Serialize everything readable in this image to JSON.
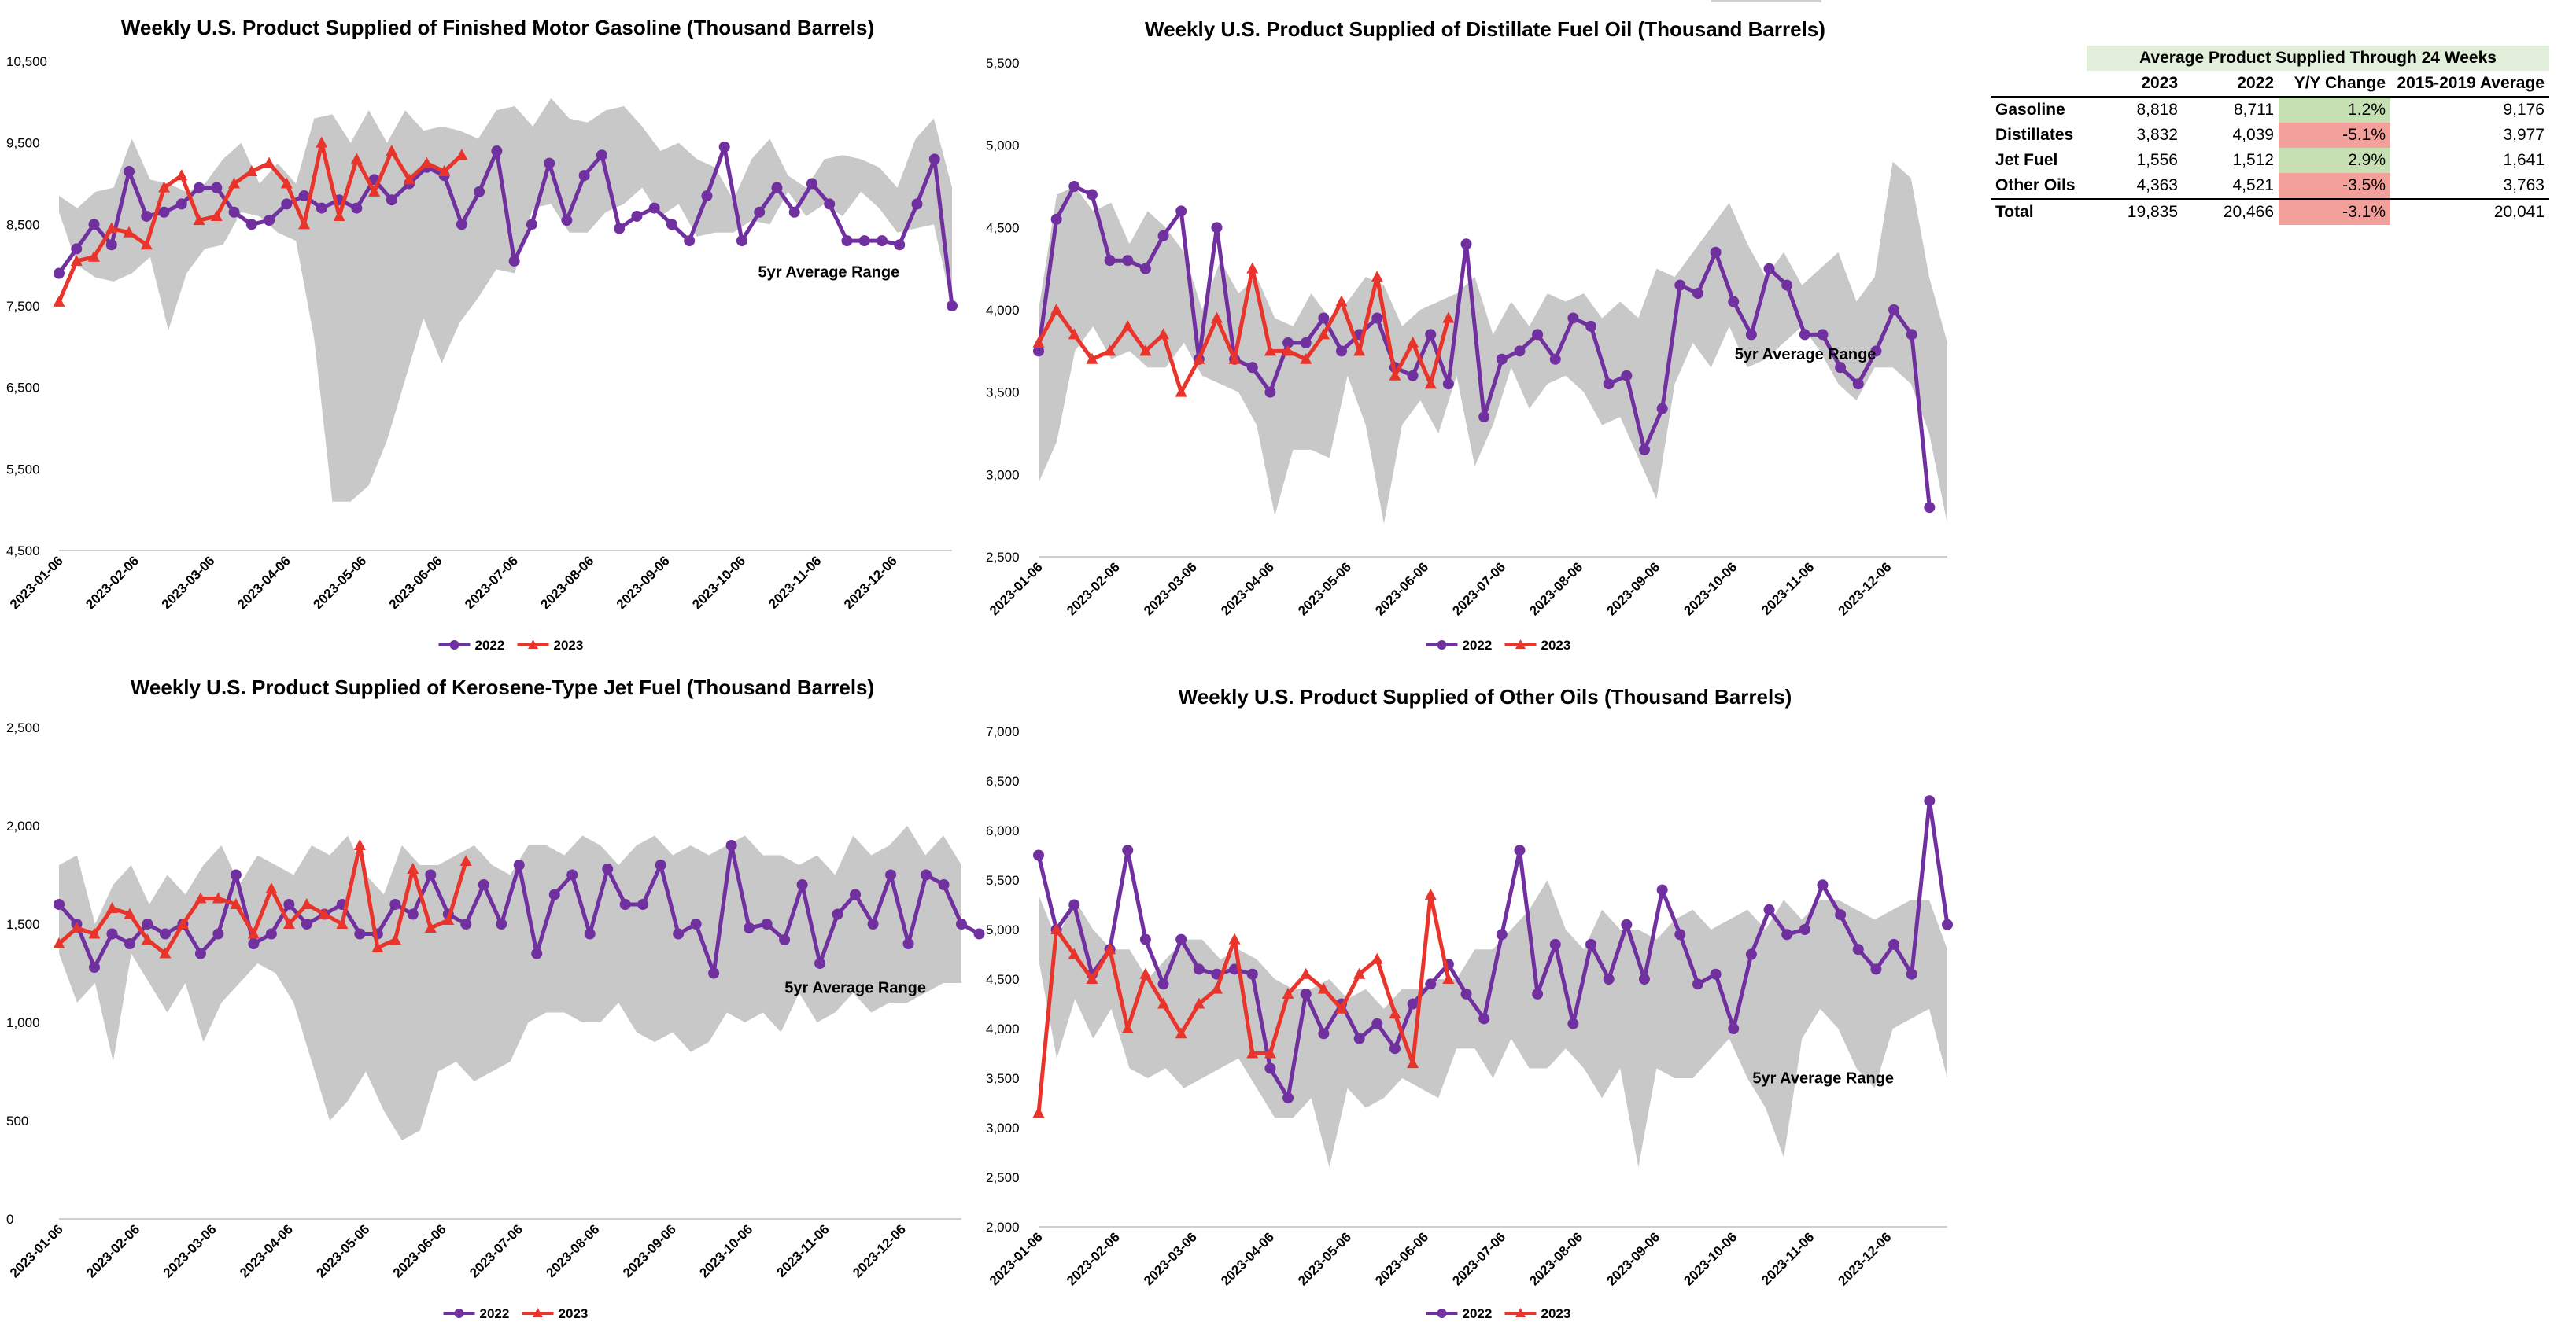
{
  "colors": {
    "series_2022": "#7030a0",
    "series_2023": "#e8342a",
    "range_band": "#c8c8c8",
    "pos_fill": "#c6e0b4",
    "neg_fill": "#f4a09a",
    "caption_fill": "#e2efda"
  },
  "x_ticks": [
    "2023-01-06",
    "2023-02-06",
    "2023-03-06",
    "2023-04-06",
    "2023-05-06",
    "2023-06-06",
    "2023-07-06",
    "2023-08-06",
    "2023-09-06",
    "2023-10-06",
    "2023-11-06",
    "2023-12-06"
  ],
  "chart_data": [
    {
      "id": "gasoline",
      "type": "line",
      "title": "Weekly U.S. Product Supplied of Finished Motor Gasoline (Thousand Barrels)",
      "ylim": [
        4500,
        10500
      ],
      "yticks": [
        4500,
        5500,
        6500,
        7500,
        8500,
        9500,
        10500
      ],
      "range_label": "5yr Average Range",
      "legend": [
        "2022",
        "2023"
      ],
      "band_upper": [
        8850,
        8700,
        8900,
        8950,
        9550,
        9050,
        9000,
        8900,
        9000,
        9300,
        9500,
        9000,
        9250,
        9000,
        9800,
        9850,
        9500,
        9900,
        9500,
        9900,
        9650,
        9700,
        9650,
        9550,
        9900,
        9950,
        9700,
        10050,
        9800,
        9750,
        9900,
        9950,
        9700,
        9400,
        9500,
        9300,
        9200,
        8800,
        9300,
        9550,
        9100,
        8950,
        9300,
        9350,
        9300,
        9200,
        8950,
        9550,
        9800,
        8950
      ],
      "band_lower": [
        8650,
        8000,
        7850,
        7800,
        7900,
        8100,
        7200,
        7900,
        8200,
        8250,
        8650,
        8600,
        8400,
        8300,
        7100,
        5100,
        5100,
        5300,
        5850,
        6600,
        7350,
        6800,
        7300,
        7600,
        7950,
        7900,
        8700,
        8750,
        8400,
        8400,
        8650,
        8750,
        8950,
        8600,
        8750,
        8350,
        8400,
        8400,
        8550,
        8500,
        8900,
        8600,
        8750,
        8600,
        8900,
        8700,
        8400,
        8450,
        8500,
        7500
      ],
      "series_2022": [
        7900,
        8200,
        8500,
        8250,
        9150,
        8600,
        8650,
        8750,
        8950,
        8950,
        8650,
        8500,
        8550,
        8750,
        8850,
        8700,
        8800,
        8700,
        9050,
        8800,
        9000,
        9200,
        9100,
        8500,
        8900,
        9400,
        8050,
        8500,
        9250,
        8550,
        9100,
        9350,
        8450,
        8600,
        8700,
        8500,
        8300,
        8850,
        9450,
        8300,
        8650,
        8950,
        8650,
        9000,
        8750,
        8300,
        8300,
        8300,
        8250,
        8750,
        9300,
        7500
      ],
      "series_2023": [
        7550,
        8050,
        8100,
        8450,
        8400,
        8250,
        8950,
        9100,
        8550,
        8600,
        9000,
        9150,
        9250,
        9000,
        8500,
        9500,
        8600,
        9300,
        8900,
        9400,
        9050,
        9250,
        9150,
        9350
      ]
    },
    {
      "id": "distillate",
      "type": "line",
      "title": "Weekly U.S. Product Supplied of Distillate Fuel Oil (Thousand Barrels)",
      "ylim": [
        2500,
        5500
      ],
      "yticks": [
        2500,
        3000,
        3500,
        4000,
        4500,
        5000,
        5500
      ],
      "range_label": "5yr Average Range",
      "legend": [
        "2022",
        "2023"
      ],
      "band_upper": [
        4000,
        4700,
        4750,
        4600,
        4650,
        4400,
        4600,
        4500,
        4350,
        4000,
        4300,
        4100,
        4200,
        3950,
        3900,
        4100,
        3950,
        4050,
        4200,
        4150,
        3900,
        4000,
        4050,
        4100,
        4200,
        3850,
        4050,
        3900,
        4100,
        4050,
        4100,
        3950,
        4050,
        3950,
        4250,
        4200,
        4350,
        4500,
        4650,
        4400,
        4200,
        4350,
        4150,
        4250,
        4350,
        4050,
        4200,
        4900,
        4800,
        4200,
        3800
      ],
      "band_lower": [
        2950,
        3200,
        3750,
        3900,
        3700,
        3750,
        3650,
        3650,
        3800,
        3600,
        3550,
        3500,
        3300,
        2750,
        3150,
        3150,
        3100,
        3600,
        3300,
        2700,
        3300,
        3450,
        3250,
        3600,
        3050,
        3300,
        3650,
        3400,
        3550,
        3600,
        3500,
        3300,
        3350,
        3100,
        2850,
        3550,
        3800,
        3650,
        3900,
        3650,
        3700,
        3800,
        3900,
        3750,
        3550,
        3450,
        3650,
        3650,
        3550,
        3250,
        2700
      ],
      "series_2022": [
        3750,
        4550,
        4750,
        4700,
        4300,
        4300,
        4250,
        4450,
        4600,
        3700,
        4500,
        3700,
        3650,
        3500,
        3800,
        3800,
        3950,
        3750,
        3850,
        3950,
        3650,
        3600,
        3850,
        3550,
        4400,
        3350,
        3700,
        3750,
        3850,
        3700,
        3950,
        3900,
        3550,
        3600,
        3150,
        3400,
        4150,
        4100,
        4350,
        4050,
        3850,
        4250,
        4150,
        3850,
        3850,
        3650,
        3550,
        3750,
        4000,
        3850,
        2800
      ],
      "series_2023": [
        3800,
        4000,
        3850,
        3700,
        3750,
        3900,
        3750,
        3850,
        3500,
        3700,
        3950,
        3700,
        4250,
        3750,
        3750,
        3700,
        3850,
        4050,
        3750,
        4200,
        3600,
        3800,
        3550,
        3950
      ]
    },
    {
      "id": "jetfuel",
      "type": "line",
      "title": "Weekly U.S. Product Supplied of Kerosene-Type Jet Fuel (Thousand Barrels)",
      "ylim": [
        0,
        2500
      ],
      "yticks": [
        0,
        500,
        1000,
        1500,
        2000,
        2500
      ],
      "range_label": "5yr Average Range",
      "legend": [
        "2022",
        "2023"
      ],
      "band_upper": [
        1800,
        1850,
        1500,
        1700,
        1800,
        1600,
        1750,
        1650,
        1800,
        1900,
        1700,
        1850,
        1800,
        1750,
        1900,
        1850,
        1950,
        1750,
        1650,
        1900,
        1800,
        1800,
        1850,
        1900,
        1800,
        1750,
        1900,
        1900,
        1850,
        1950,
        1900,
        1800,
        1900,
        1950,
        1850,
        1900,
        1850,
        1900,
        1950,
        1850,
        1850,
        1800,
        1850,
        1750,
        1950,
        1850,
        1900,
        2000,
        1850,
        1950,
        1800
      ],
      "band_lower": [
        1350,
        1100,
        1200,
        800,
        1350,
        1200,
        1050,
        1200,
        900,
        1100,
        1200,
        1300,
        1250,
        1100,
        800,
        500,
        600,
        750,
        550,
        400,
        450,
        750,
        800,
        700,
        750,
        800,
        1000,
        1050,
        1050,
        1000,
        1000,
        1100,
        950,
        900,
        950,
        850,
        900,
        1050,
        1000,
        1050,
        950,
        1150,
        1000,
        1050,
        1150,
        1050,
        1100,
        1100,
        1150,
        1200,
        1200
      ],
      "series_2022": [
        1600,
        1500,
        1280,
        1450,
        1400,
        1500,
        1450,
        1500,
        1350,
        1450,
        1750,
        1400,
        1450,
        1600,
        1500,
        1550,
        1600,
        1450,
        1450,
        1600,
        1550,
        1750,
        1550,
        1500,
        1700,
        1500,
        1800,
        1350,
        1650,
        1750,
        1450,
        1780,
        1600,
        1600,
        1800,
        1450,
        1500,
        1250,
        1900,
        1480,
        1500,
        1420,
        1700,
        1300,
        1550,
        1650,
        1500,
        1750,
        1400,
        1750,
        1700,
        1500,
        1450
      ],
      "series_2023": [
        1400,
        1480,
        1450,
        1580,
        1550,
        1420,
        1350,
        1500,
        1630,
        1630,
        1600,
        1450,
        1680,
        1500,
        1600,
        1550,
        1500,
        1900,
        1380,
        1420,
        1780,
        1480,
        1520,
        1820
      ]
    },
    {
      "id": "otheroils",
      "type": "line",
      "title": "Weekly U.S. Product Supplied of Other Oils (Thousand Barrels)",
      "ylim": [
        2000,
        7000
      ],
      "yticks": [
        2000,
        2500,
        3000,
        3500,
        4000,
        4500,
        5000,
        5500,
        6000,
        6500,
        7000
      ],
      "range_label": "5yr Average Range",
      "legend": [
        "2022",
        "2023"
      ],
      "band_upper": [
        5350,
        4900,
        5300,
        5000,
        4800,
        4800,
        4500,
        4700,
        4900,
        4900,
        4700,
        4800,
        4700,
        4500,
        4400,
        4400,
        4500,
        4300,
        4400,
        4200,
        4400,
        4400,
        4500,
        4500,
        4800,
        4800,
        5000,
        5200,
        5500,
        5000,
        4800,
        5200,
        5000,
        5000,
        4900,
        5100,
        5200,
        5000,
        5100,
        5200,
        5000,
        5300,
        5100,
        5300,
        5300,
        5200,
        5100,
        5200,
        5300,
        5300,
        4800
      ],
      "band_lower": [
        4700,
        3700,
        4300,
        3900,
        4200,
        3600,
        3500,
        3600,
        3400,
        3500,
        3600,
        3700,
        3400,
        3100,
        3100,
        3300,
        2600,
        3400,
        3200,
        3300,
        3500,
        3400,
        3300,
        3800,
        3800,
        3500,
        3900,
        3600,
        3600,
        3800,
        3600,
        3300,
        3600,
        2600,
        3600,
        3500,
        3500,
        3700,
        3900,
        3500,
        3200,
        2700,
        3900,
        4200,
        4000,
        3600,
        3400,
        4000,
        4100,
        4200,
        3500
      ],
      "series_2022": [
        5750,
        5000,
        5250,
        4550,
        4800,
        5800,
        4900,
        4450,
        4900,
        4600,
        4550,
        4600,
        4550,
        3600,
        3300,
        4350,
        3950,
        4250,
        3900,
        4050,
        3800,
        4250,
        4450,
        4650,
        4350,
        4100,
        4950,
        5800,
        4350,
        4850,
        4050,
        4850,
        4500,
        5050,
        4500,
        5400,
        4950,
        4450,
        4550,
        4000,
        4750,
        5200,
        4950,
        5000,
        5450,
        5150,
        4800,
        4600,
        4850,
        4550,
        6300,
        5050
      ],
      "series_2023": [
        3150,
        5000,
        4750,
        4500,
        4800,
        4000,
        4550,
        4250,
        3950,
        4250,
        4400,
        4900,
        3750,
        3750,
        4350,
        4550,
        4400,
        4200,
        4550,
        4700,
        4150,
        3650,
        5350,
        4500
      ]
    }
  ],
  "summary": {
    "caption": "Average Product Supplied Through 24 Weeks",
    "headers": [
      "",
      "2023",
      "2022",
      "Y/Y Change",
      "2015-2019 Average"
    ],
    "rows": [
      {
        "label": "Gasoline",
        "v2023": "8,818",
        "v2022": "8,711",
        "change": "1.2%",
        "avg": "9,176",
        "sign": "pos"
      },
      {
        "label": "Distillates",
        "v2023": "3,832",
        "v2022": "4,039",
        "change": "-5.1%",
        "avg": "3,977",
        "sign": "neg"
      },
      {
        "label": "Jet Fuel",
        "v2023": "1,556",
        "v2022": "1,512",
        "change": "2.9%",
        "avg": "1,641",
        "sign": "pos"
      },
      {
        "label": "Other Oils",
        "v2023": "4,363",
        "v2022": "4,521",
        "change": "-3.5%",
        "avg": "3,763",
        "sign": "neg"
      }
    ],
    "total": {
      "label": "Total",
      "v2023": "19,835",
      "v2022": "20,466",
      "change": "-3.1%",
      "avg": "20,041",
      "sign": "neg"
    }
  }
}
